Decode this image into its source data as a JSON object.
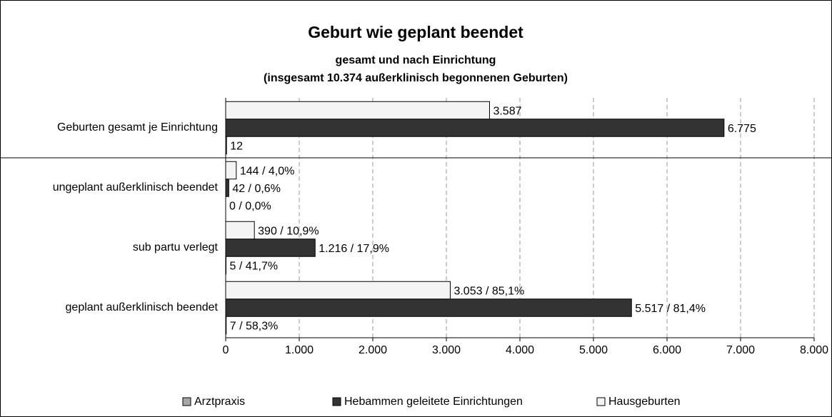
{
  "chart_data": {
    "type": "bar",
    "orientation": "horizontal",
    "title": "Geburt wie geplant beendet",
    "subtitle": "gesamt und nach Einrichtung",
    "subtitle2": "(insgesamt 10.374 außerklinisch begonnenen Geburten)",
    "categories": [
      "Geburten gesamt je Einrichtung",
      "ungeplant außerklinisch beendet",
      "sub partu verlegt",
      "geplant außerklinisch beendet"
    ],
    "series": [
      {
        "name": "Arztpraxis",
        "color": "#a6a6a6",
        "values": [
          12,
          0,
          5,
          7
        ],
        "value_labels": [
          "12",
          "0 / 0,0%",
          "5 / 41,7%",
          "7 / 58,3%"
        ]
      },
      {
        "name": "Hebammen geleitete Einrichtungen",
        "color": "#333333",
        "values": [
          6775,
          42,
          1216,
          5517
        ],
        "value_labels": [
          "6.775",
          "42 / 0,6%",
          "1.216 / 17,9%",
          "5.517 / 81,4%"
        ]
      },
      {
        "name": "Hausgeburten",
        "color": "#f4f4f4",
        "values": [
          3587,
          144,
          390,
          3053
        ],
        "value_labels": [
          "3.587",
          "144 / 4,0%",
          "390 / 10,9%",
          "3.053 / 85,1%"
        ]
      }
    ],
    "xlim": [
      0,
      8000
    ],
    "xticks": [
      0,
      {
        "value": 1000,
        "label": "1.000"
      },
      {
        "value": 2000,
        "label": "2.000"
      },
      {
        "value": 3000,
        "label": "3.000"
      },
      {
        "value": 4000,
        "label": "4.000"
      },
      {
        "value": 5000,
        "label": "5.000"
      },
      {
        "value": 6000,
        "label": "6.000"
      },
      {
        "value": 7000,
        "label": "7.000"
      },
      {
        "value": 8000,
        "label": "8.000"
      }
    ],
    "grid": true,
    "legend": "bottom"
  }
}
